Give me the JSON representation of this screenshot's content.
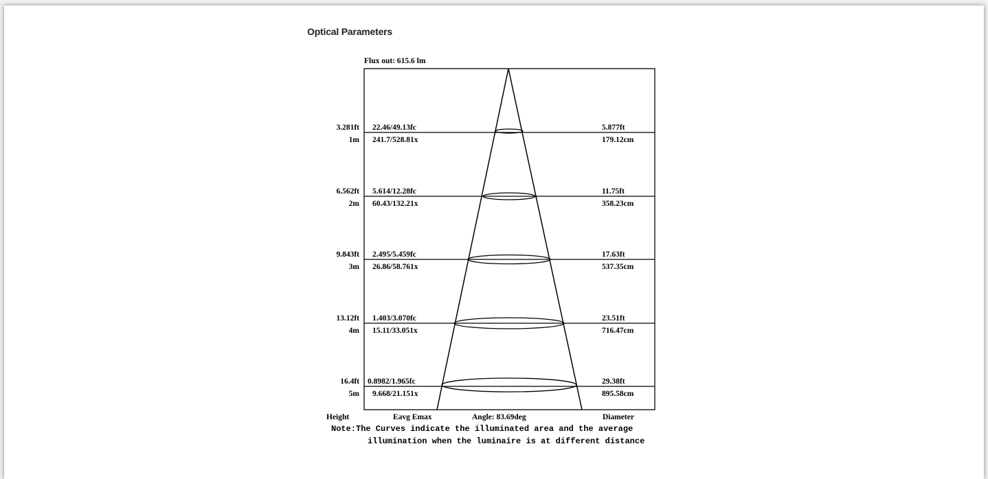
{
  "title": "Optical Parameters",
  "flux": "Flux out: 615.6 lm",
  "rows": [
    {
      "height_ft": "3.281ft",
      "height_m": "1m",
      "fc": "22.46/49.13fc",
      "lx": "241.7/528.81x",
      "dia_ft": "5.877ft",
      "dia_cm": "179.12cm"
    },
    {
      "height_ft": "6.562ft",
      "height_m": "2m",
      "fc": "5.614/12.28fc",
      "lx": "60.43/132.21x",
      "dia_ft": "11.75ft",
      "dia_cm": "358.23cm"
    },
    {
      "height_ft": "9.843ft",
      "height_m": "3m",
      "fc": "2.495/5.459fc",
      "lx": "26.86/58.761x",
      "dia_ft": "17.63ft",
      "dia_cm": "537.35cm"
    },
    {
      "height_ft": "13.12ft",
      "height_m": "4m",
      "fc": "1.403/3.070fc",
      "lx": "15.11/33.051x",
      "dia_ft": "23.51ft",
      "dia_cm": "716.47cm"
    },
    {
      "height_ft": "16.4ft",
      "height_m": "5m",
      "fc": "0.8982/1.965fc",
      "lx": "9.668/21.151x",
      "dia_ft": "29.38ft",
      "dia_cm": "895.58cm"
    }
  ],
  "footer": {
    "height": "Height",
    "eavg": "Eavg Emax",
    "angle": "Angle: 83.69deg",
    "diameter": "Diameter"
  },
  "note": {
    "line1": "Note:The Curves indicate the illuminated area and the average",
    "line2": "illumination when the luminaire is at different distance"
  }
}
